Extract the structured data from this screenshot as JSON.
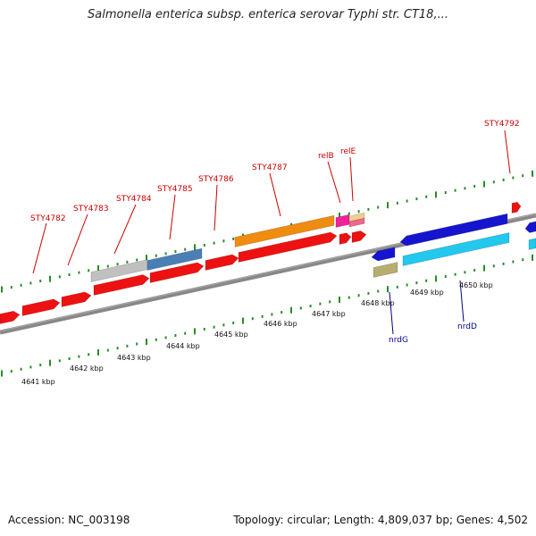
{
  "title": "Salmonella enterica subsp. enterica serovar Typhi str. CT18,...",
  "footer": {
    "accession": "Accession: NC_003198",
    "summary": "Topology: circular; Length: 4,809,037 bp; Genes: 4,502"
  },
  "colors": {
    "forward_gene": "#ee1111",
    "reverse_gene": "#1515d0",
    "reverse_gene_light": "#22c8ee",
    "orange_gene": "#f08c10",
    "steel_gene": "#4a7fb5",
    "grey_gene": "#c0c0c0",
    "pink_gene": "#ee2299",
    "khaki_gene": "#b5ae70",
    "backbone": "#888888",
    "ticks": "#2a8a2a",
    "label_forward": "#cc0000",
    "label_reverse": "#00008b"
  },
  "top_labels": [
    {
      "text": "STY4782"
    },
    {
      "text": "STY4783"
    },
    {
      "text": "STY4784"
    },
    {
      "text": "STY4785"
    },
    {
      "text": "STY4786"
    },
    {
      "text": "STY4787"
    },
    {
      "text": "relB"
    },
    {
      "text": "relE"
    },
    {
      "text": "STY4792"
    }
  ],
  "bottom_labels": [
    {
      "text": "nrdG"
    },
    {
      "text": "nrdD"
    }
  ],
  "kbp_labels": [
    "4641 kbp",
    "4642 kbp",
    "4643 kbp",
    "4644 kbp",
    "4645 kbp",
    "4646 kbp",
    "4647 kbp",
    "4648 kbp",
    "4649 kbp",
    "4650 kbp"
  ]
}
